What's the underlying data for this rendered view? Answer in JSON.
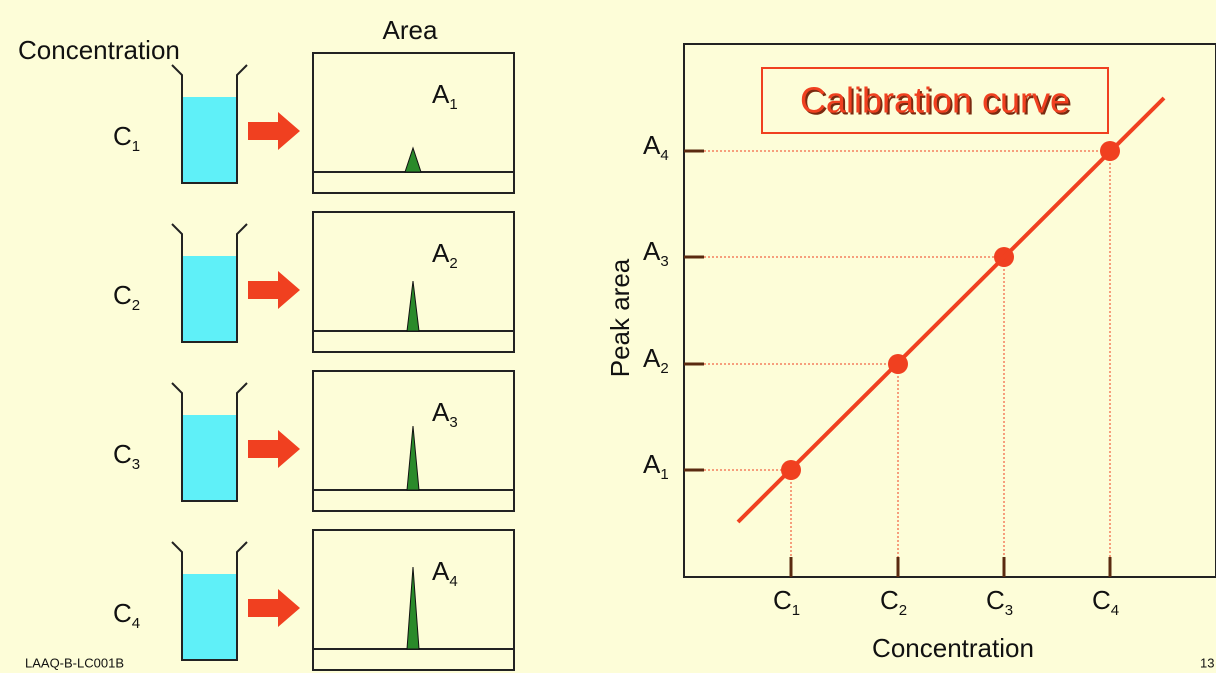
{
  "left_header": "Concentration",
  "area_header": "Area",
  "samples": [
    {
      "conc": {
        "base": "C",
        "sub": "1"
      },
      "area": {
        "base": "A",
        "sub": "1"
      }
    },
    {
      "conc": {
        "base": "C",
        "sub": "2"
      },
      "area": {
        "base": "A",
        "sub": "2"
      }
    },
    {
      "conc": {
        "base": "C",
        "sub": "3"
      },
      "area": {
        "base": "A",
        "sub": "3"
      }
    },
    {
      "conc": {
        "base": "C",
        "sub": "4"
      },
      "area": {
        "base": "A",
        "sub": "4"
      }
    }
  ],
  "plot": {
    "title": "Calibration curve",
    "y_label": "Peak area",
    "x_label": "Concentration"
  },
  "footer": {
    "code": "LAAQ-B-LC001B",
    "page": "13"
  }
}
